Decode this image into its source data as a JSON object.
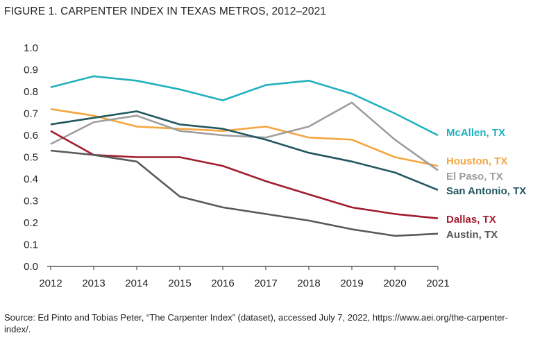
{
  "chart_data": {
    "type": "line",
    "title": "FIGURE 1. CARPENTER INDEX IN TEXAS METROS, 2012–2021",
    "xlabel": "",
    "ylabel": "",
    "x": [
      "2012",
      "2013",
      "2014",
      "2015",
      "2016",
      "2017",
      "2018",
      "2019",
      "2020",
      "2021"
    ],
    "ylim": [
      0,
      1.0
    ],
    "yticks": [
      "0.0",
      "0.1",
      "0.2",
      "0.3",
      "0.4",
      "0.5",
      "0.6",
      "0.7",
      "0.8",
      "0.9",
      "1.0"
    ],
    "grid": false,
    "series": [
      {
        "name": "McAllen, TX",
        "color": "#22b0be",
        "label_weight": "bold",
        "values": [
          0.82,
          0.87,
          0.85,
          0.81,
          0.76,
          0.83,
          0.85,
          0.79,
          0.7,
          0.6
        ]
      },
      {
        "name": "Houston, TX",
        "color": "#f5a63e",
        "label_weight": "bold",
        "values": [
          0.72,
          0.69,
          0.64,
          0.63,
          0.62,
          0.64,
          0.59,
          0.58,
          0.5,
          0.46
        ]
      },
      {
        "name": "El Paso, TX",
        "color": "#9d9d9f",
        "label_weight": "normal",
        "values": [
          0.56,
          0.66,
          0.69,
          0.62,
          0.6,
          0.59,
          0.64,
          0.75,
          0.58,
          0.44
        ]
      },
      {
        "name": "San Antonio, TX",
        "color": "#22575f",
        "label_weight": "bold",
        "values": [
          0.65,
          0.68,
          0.71,
          0.65,
          0.63,
          0.58,
          0.52,
          0.48,
          0.43,
          0.35
        ]
      },
      {
        "name": "Dallas, TX",
        "color": "#a11c2e",
        "label_weight": "bold",
        "values": [
          0.62,
          0.51,
          0.5,
          0.5,
          0.46,
          0.39,
          0.33,
          0.27,
          0.24,
          0.22
        ]
      },
      {
        "name": "Austin, TX",
        "color": "#58595b",
        "label_weight": "bold",
        "values": [
          0.53,
          0.51,
          0.48,
          0.32,
          0.27,
          0.24,
          0.21,
          0.17,
          0.14,
          0.15
        ]
      }
    ]
  },
  "source_text": "Source: Ed Pinto and Tobias Peter, “The Carpenter Index” (dataset), accessed July 7, 2022, https://www.aei.org/the-carpenter-index/."
}
